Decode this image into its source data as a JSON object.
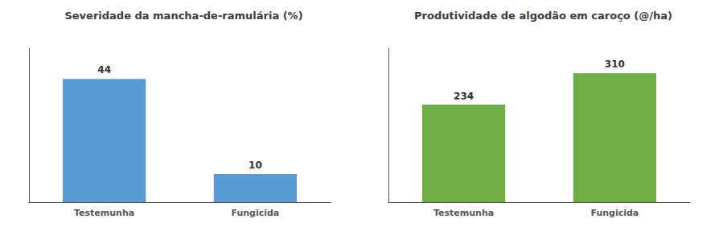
{
  "chart_data": [
    {
      "type": "bar",
      "title": "Severidade da mancha-de-ramulária (%)",
      "categories": [
        "Testemunha",
        "Fungicida"
      ],
      "values": [
        44,
        10
      ],
      "color": "#5B9BD5",
      "ylim": [
        0,
        55
      ],
      "grid": false,
      "data_labels": true,
      "tick_labels": "x"
    },
    {
      "type": "bar",
      "title": "Produtividade de algodão em caroço (@/ha)",
      "categories": [
        "Testemunha",
        "Fungicida"
      ],
      "values": [
        234,
        310
      ],
      "color": "#70AD47",
      "ylim": [
        0,
        370
      ],
      "grid": false,
      "data_labels": true,
      "tick_labels": "x"
    }
  ]
}
